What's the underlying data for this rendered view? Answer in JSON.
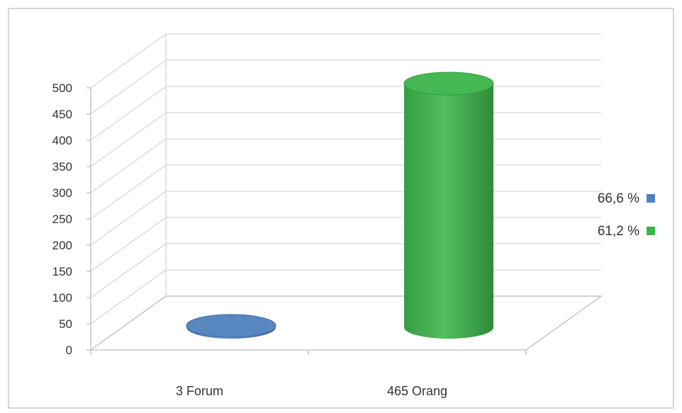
{
  "chart_data": {
    "type": "bar",
    "style": "3d-cylinder",
    "categories": [
      "3 Forum",
      "465 Orang"
    ],
    "values": [
      3,
      465
    ],
    "ylim": [
      0,
      500
    ],
    "yticks": [
      "0",
      "50",
      "100",
      "150",
      "200",
      "250",
      "300",
      "350",
      "400",
      "450",
      "500"
    ],
    "grid": true,
    "legend_position": "right",
    "series": [
      {
        "name": "66,6 %",
        "color": "#4f81bd"
      },
      {
        "name": "61,2 %",
        "color": "#3cb44a"
      }
    ]
  }
}
